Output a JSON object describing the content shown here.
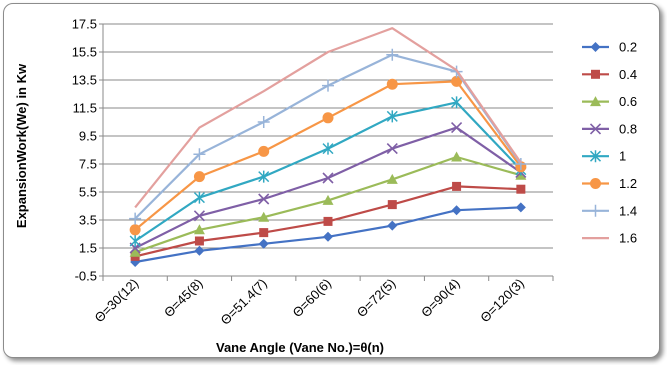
{
  "chart_data": {
    "type": "line",
    "categories": [
      "Θ=30(12)",
      "Θ=45(8)",
      "Θ=51.4(7)",
      "Θ=60(6)",
      "Θ=72(5)",
      "Θ=90(4)",
      "Θ=120(3)"
    ],
    "xlabel": "Vane Angle  (Vane No.)=θ(n)",
    "ylabel": "ExpansionWork(We) in Kw",
    "ylim": [
      -0.5,
      17.5
    ],
    "yticks": [
      -0.5,
      1.5,
      3.5,
      5.5,
      7.5,
      9.5,
      11.5,
      13.5,
      15.5,
      17.5
    ],
    "grid": true,
    "legend_position": "right",
    "series": [
      {
        "name": "0.2",
        "color": "#4472c4",
        "marker": "diamond",
        "values": [
          0.5,
          1.3,
          1.8,
          2.3,
          3.1,
          4.2,
          4.4
        ]
      },
      {
        "name": "0.4",
        "color": "#be4b48",
        "marker": "square",
        "values": [
          0.9,
          2.0,
          2.6,
          3.4,
          4.6,
          5.9,
          5.7
        ]
      },
      {
        "name": "0.6",
        "color": "#9bbb59",
        "marker": "triangle",
        "values": [
          1.2,
          2.8,
          3.7,
          4.9,
          6.4,
          8.0,
          6.7
        ]
      },
      {
        "name": "0.8",
        "color": "#7f5fa6",
        "marker": "x",
        "values": [
          1.5,
          3.8,
          5.0,
          6.5,
          8.6,
          10.1,
          6.9
        ]
      },
      {
        "name": "1",
        "color": "#31a8c2",
        "marker": "star",
        "values": [
          2.0,
          5.1,
          6.6,
          8.6,
          10.9,
          11.9,
          7.1
        ]
      },
      {
        "name": "1.2",
        "color": "#f79646",
        "marker": "circle",
        "values": [
          2.8,
          6.6,
          8.4,
          10.8,
          13.2,
          13.4,
          7.3
        ]
      },
      {
        "name": "1.4",
        "color": "#98b4d9",
        "marker": "plus",
        "values": [
          3.6,
          8.2,
          10.5,
          13.1,
          15.3,
          14.1,
          7.5
        ]
      },
      {
        "name": "1.6",
        "color": "#e3a09e",
        "marker": "none",
        "values": [
          4.4,
          10.1,
          12.7,
          15.5,
          17.2,
          14.2,
          7.6
        ]
      }
    ]
  }
}
